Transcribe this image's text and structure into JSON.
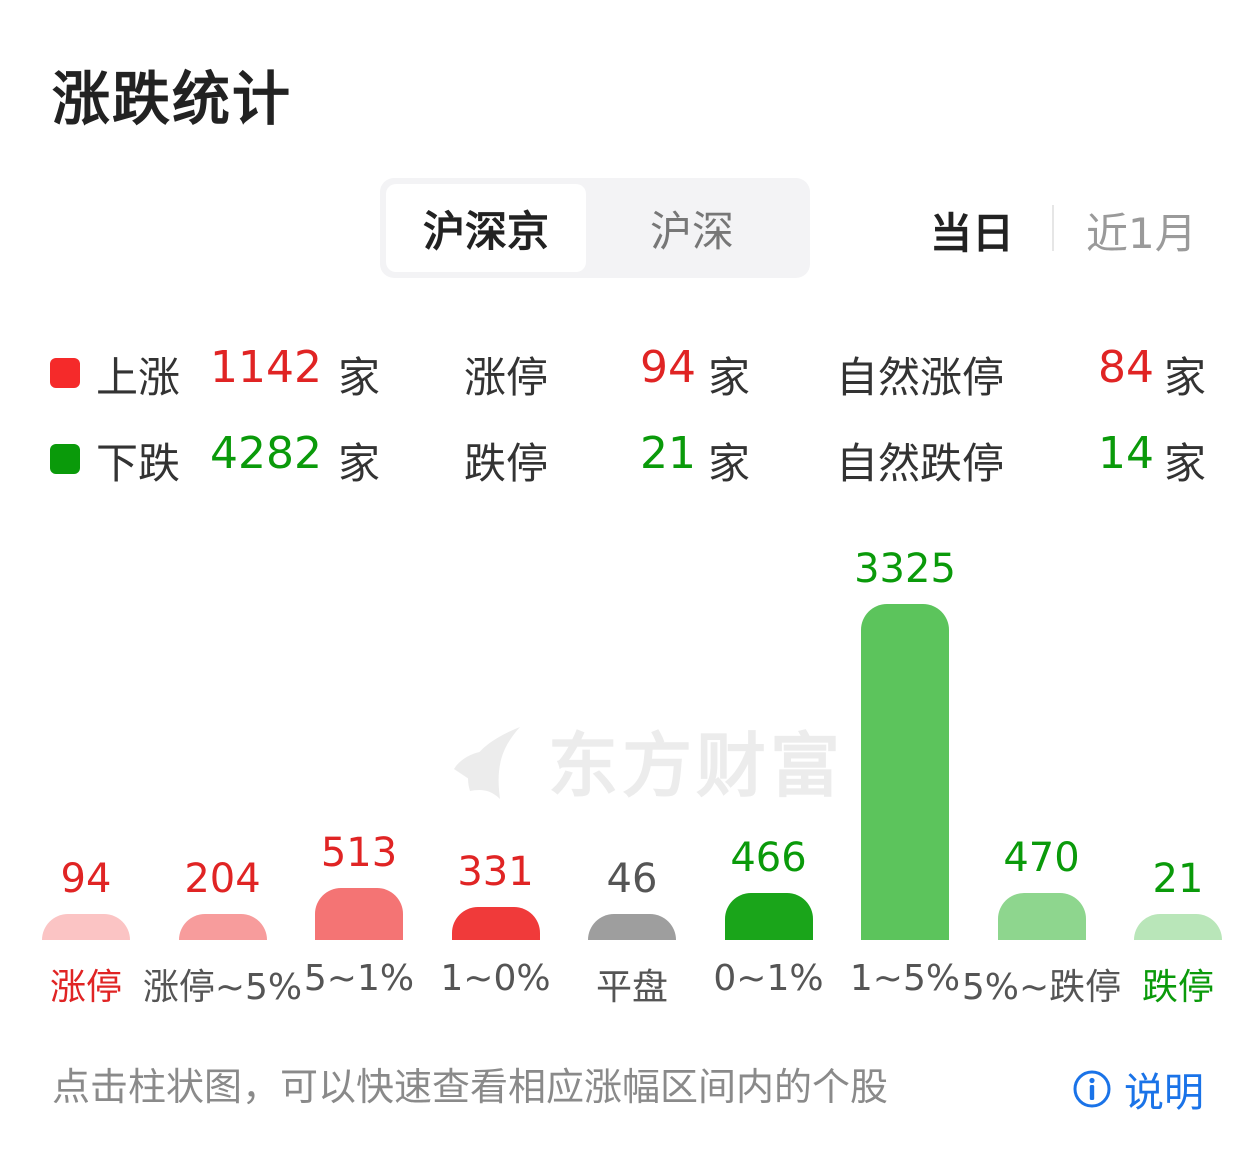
{
  "title": "涨跌统计",
  "market_tabs": [
    {
      "label": "沪深京",
      "active": true
    },
    {
      "label": "沪深",
      "active": false
    }
  ],
  "period_tabs": [
    {
      "label": "当日",
      "active": true
    },
    {
      "label": "近1月",
      "active": false
    }
  ],
  "summary": {
    "up": {
      "label": "上涨",
      "value": "1142",
      "unit": "家",
      "color": "#f52a2a"
    },
    "down": {
      "label": "下跌",
      "value": "4282",
      "unit": "家",
      "color": "#0a9a0a"
    },
    "limit_up": {
      "label": "涨停",
      "value": "94",
      "unit": "家"
    },
    "limit_down": {
      "label": "跌停",
      "value": "21",
      "unit": "家"
    },
    "natural_limit_up": {
      "label": "自然涨停",
      "value": "84",
      "unit": "家"
    },
    "natural_limit_down": {
      "label": "自然跌停",
      "value": "14",
      "unit": "家"
    }
  },
  "watermark": "东方财富",
  "chart_data": {
    "type": "bar",
    "categories": [
      "涨停",
      "涨停~5%",
      "5~1%",
      "1~0%",
      "平盘",
      "0~1%",
      "1~5%",
      "5%~跌停",
      "跌停"
    ],
    "values": [
      94,
      204,
      513,
      331,
      46,
      466,
      3325,
      470,
      21
    ],
    "bar_colors": [
      "#fbc4c4",
      "#f79c9c",
      "#f47474",
      "#f03a3a",
      "#9e9e9e",
      "#1aa51a",
      "#5cc45c",
      "#8ed68e",
      "#b9e6b9"
    ],
    "value_colors": [
      "#e02424",
      "#e02424",
      "#e02424",
      "#e02424",
      "#555555",
      "#0a9a0a",
      "#0a9a0a",
      "#0a9a0a",
      "#0a9a0a"
    ],
    "category_colors": [
      "#e02424",
      "#555555",
      "#555555",
      "#555555",
      "#555555",
      "#555555",
      "#555555",
      "#555555",
      "#0a9a0a"
    ]
  },
  "footer": {
    "hint": "点击柱状图，可以快速查看相应涨幅区间内的个股",
    "explain_label": "说明"
  }
}
